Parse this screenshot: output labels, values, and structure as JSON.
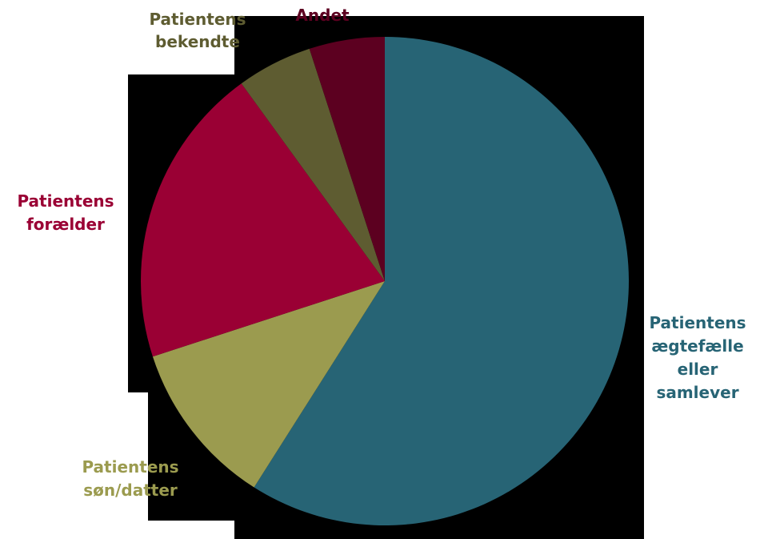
{
  "chart_data": {
    "type": "pie",
    "title": "",
    "start_angle_deg": 0,
    "direction": "clockwise",
    "legend": "none",
    "slices": [
      {
        "label": [
          "Patientens",
          "ægtefælle",
          "eller",
          "samlever"
        ],
        "value": 59,
        "color": "#276475"
      },
      {
        "label": [
          "Patientens",
          "søn/datter"
        ],
        "value": 11,
        "color": "#9B9B4F"
      },
      {
        "label": [
          "Patientens",
          "forælder"
        ],
        "value": 20,
        "color": "#9A0034"
      },
      {
        "label": [
          "Patientens",
          "bekendte"
        ],
        "value": 5,
        "color": "#5E5C31"
      },
      {
        "label": [
          "Andet"
        ],
        "value": 5,
        "color": "#5C0020"
      }
    ]
  }
}
